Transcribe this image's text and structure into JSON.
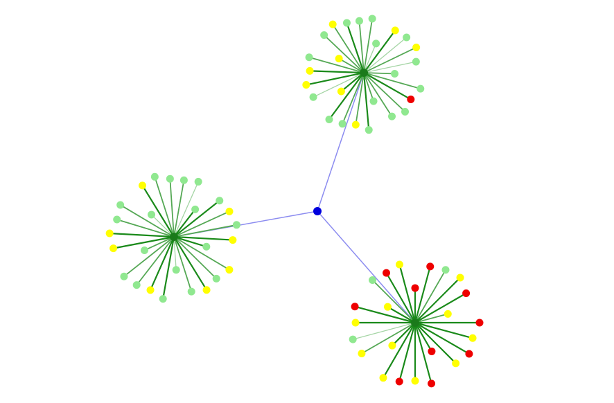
{
  "colors": {
    "background": "#ffffff",
    "root_node": "#0000dd",
    "root_link": "#8c8cf0",
    "hub_node": "#1a7a1a",
    "spoke_strong": "#1a8a1a",
    "spoke_medium": "#55a855",
    "spoke_light": "#a5d5a5",
    "leaf_light_green": "#90e890",
    "leaf_yellow": "#ffff00",
    "leaf_red": "#ee0000"
  },
  "graph": {
    "root": {
      "id": "root",
      "color": "root_node"
    },
    "clusters": [
      {
        "id": "top",
        "leaves": [
          {
            "c": "leaf_light_green",
            "s": "spoke_medium"
          },
          {
            "c": "leaf_light_green",
            "s": "spoke_medium"
          },
          {
            "c": "leaf_light_green",
            "s": "spoke_light"
          },
          {
            "c": "leaf_yellow",
            "s": "spoke_strong"
          },
          {
            "c": "leaf_light_green",
            "s": "spoke_light"
          },
          {
            "c": "leaf_yellow",
            "s": "spoke_medium"
          },
          {
            "c": "leaf_light_green",
            "s": "spoke_light"
          },
          {
            "c": "leaf_light_green",
            "s": "spoke_medium"
          },
          {
            "c": "leaf_light_green",
            "s": "spoke_medium"
          },
          {
            "c": "leaf_red",
            "s": "spoke_strong"
          },
          {
            "c": "leaf_light_green",
            "s": "spoke_medium"
          },
          {
            "c": "leaf_light_green",
            "s": "spoke_medium"
          },
          {
            "c": "leaf_light_green",
            "s": "spoke_medium"
          },
          {
            "c": "leaf_light_green",
            "s": "spoke_strong"
          },
          {
            "c": "leaf_yellow",
            "s": "spoke_medium"
          },
          {
            "c": "leaf_light_green",
            "s": "spoke_medium"
          },
          {
            "c": "leaf_light_green",
            "s": "spoke_strong"
          },
          {
            "c": "leaf_yellow",
            "s": "spoke_strong"
          },
          {
            "c": "leaf_light_green",
            "s": "spoke_light"
          },
          {
            "c": "leaf_yellow",
            "s": "spoke_strong"
          },
          {
            "c": "leaf_yellow",
            "s": "spoke_strong"
          },
          {
            "c": "leaf_light_green",
            "s": "spoke_medium"
          },
          {
            "c": "leaf_yellow",
            "s": "spoke_medium"
          },
          {
            "c": "leaf_light_green",
            "s": "spoke_medium"
          },
          {
            "c": "leaf_yellow",
            "s": "spoke_medium"
          },
          {
            "c": "leaf_light_green",
            "s": "spoke_strong"
          }
        ]
      },
      {
        "id": "left",
        "leaves": [
          {
            "c": "leaf_light_green",
            "s": "spoke_medium"
          },
          {
            "c": "leaf_light_green",
            "s": "spoke_light"
          },
          {
            "c": "leaf_light_green",
            "s": "spoke_strong"
          },
          {
            "c": "leaf_light_green",
            "s": "spoke_strong"
          },
          {
            "c": "leaf_yellow",
            "s": "spoke_medium"
          },
          {
            "c": "leaf_light_green",
            "s": "spoke_medium"
          },
          {
            "c": "leaf_yellow",
            "s": "spoke_strong"
          },
          {
            "c": "leaf_light_green",
            "s": "spoke_strong"
          },
          {
            "c": "leaf_yellow",
            "s": "spoke_medium"
          },
          {
            "c": "leaf_light_green",
            "s": "spoke_medium"
          },
          {
            "c": "leaf_yellow",
            "s": "spoke_strong"
          },
          {
            "c": "leaf_light_green",
            "s": "spoke_medium"
          },
          {
            "c": "leaf_light_green",
            "s": "spoke_light"
          },
          {
            "c": "leaf_light_green",
            "s": "spoke_strong"
          },
          {
            "c": "leaf_yellow",
            "s": "spoke_strong"
          },
          {
            "c": "leaf_light_green",
            "s": "spoke_medium"
          },
          {
            "c": "leaf_light_green",
            "s": "spoke_medium"
          },
          {
            "c": "leaf_light_green",
            "s": "spoke_medium"
          },
          {
            "c": "leaf_yellow",
            "s": "spoke_strong"
          },
          {
            "c": "leaf_yellow",
            "s": "spoke_strong"
          },
          {
            "c": "leaf_light_green",
            "s": "spoke_medium"
          },
          {
            "c": "leaf_light_green",
            "s": "spoke_medium"
          },
          {
            "c": "leaf_light_green",
            "s": "spoke_light"
          },
          {
            "c": "leaf_yellow",
            "s": "spoke_strong"
          },
          {
            "c": "leaf_light_green",
            "s": "spoke_medium"
          },
          {
            "c": "leaf_light_green",
            "s": "spoke_medium"
          }
        ]
      },
      {
        "id": "bottom-right",
        "leaves": [
          {
            "c": "leaf_red",
            "s": "spoke_strong"
          },
          {
            "c": "leaf_yellow",
            "s": "spoke_strong"
          },
          {
            "c": "leaf_red",
            "s": "spoke_strong"
          },
          {
            "c": "leaf_red",
            "s": "spoke_strong"
          },
          {
            "c": "leaf_light_green",
            "s": "spoke_medium"
          },
          {
            "c": "leaf_yellow",
            "s": "spoke_strong"
          },
          {
            "c": "leaf_red",
            "s": "spoke_strong"
          },
          {
            "c": "leaf_yellow",
            "s": "spoke_medium"
          },
          {
            "c": "leaf_red",
            "s": "spoke_strong"
          },
          {
            "c": "leaf_yellow",
            "s": "spoke_strong"
          },
          {
            "c": "leaf_red",
            "s": "spoke_strong"
          },
          {
            "c": "leaf_yellow",
            "s": "spoke_strong"
          },
          {
            "c": "leaf_red",
            "s": "spoke_strong"
          },
          {
            "c": "leaf_red",
            "s": "spoke_strong"
          },
          {
            "c": "leaf_yellow",
            "s": "spoke_strong"
          },
          {
            "c": "leaf_red",
            "s": "spoke_strong"
          },
          {
            "c": "leaf_yellow",
            "s": "spoke_strong"
          },
          {
            "c": "leaf_yellow",
            "s": "spoke_strong"
          },
          {
            "c": "leaf_yellow",
            "s": "spoke_medium"
          },
          {
            "c": "leaf_light_green",
            "s": "spoke_light"
          },
          {
            "c": "leaf_yellow",
            "s": "spoke_strong"
          },
          {
            "c": "leaf_red",
            "s": "spoke_strong"
          },
          {
            "c": "leaf_yellow",
            "s": "spoke_strong"
          },
          {
            "c": "leaf_light_green",
            "s": "spoke_medium"
          }
        ]
      }
    ]
  }
}
